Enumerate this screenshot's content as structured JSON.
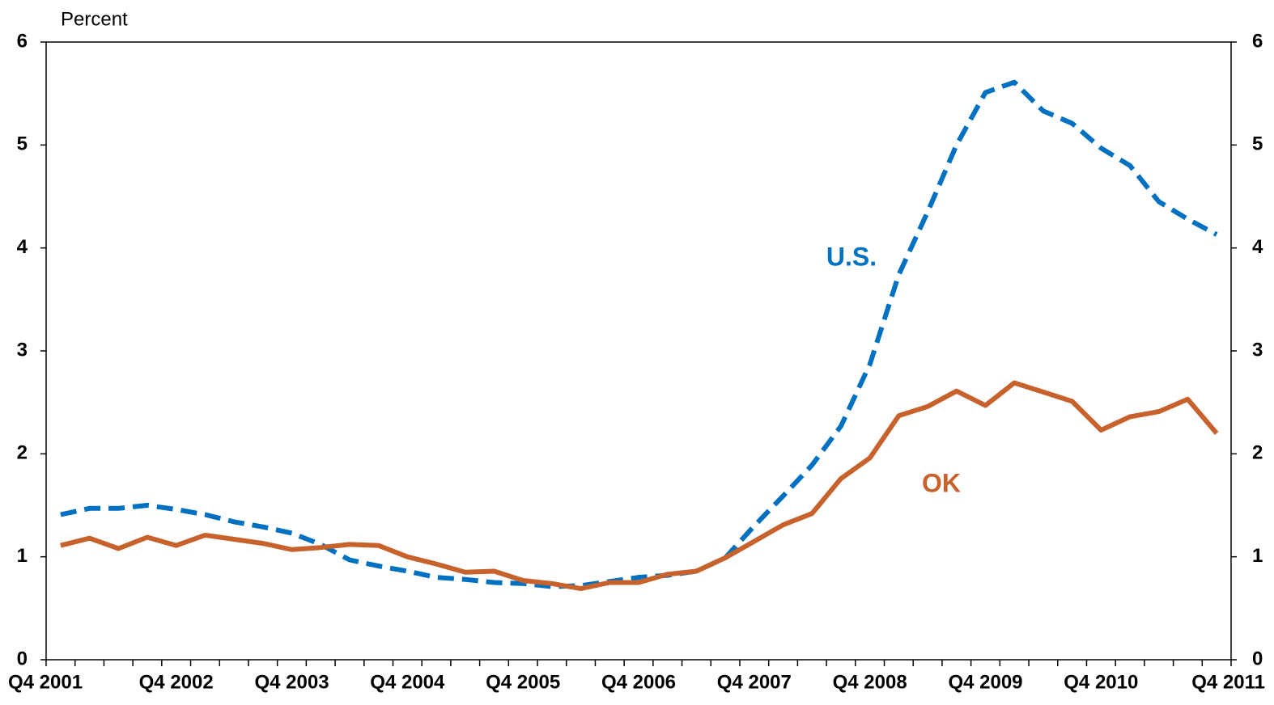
{
  "chart_data": {
    "type": "line",
    "y_label": "Percent",
    "categories": [
      "Q4 2001",
      null,
      null,
      null,
      "Q4 2002",
      null,
      null,
      null,
      "Q4 2003",
      null,
      null,
      null,
      "Q4 2004",
      null,
      null,
      null,
      "Q4 2005",
      null,
      null,
      null,
      "Q4 2006",
      null,
      null,
      null,
      "Q4 2007",
      null,
      null,
      null,
      "Q4 2008",
      null,
      null,
      null,
      "Q4 2009",
      null,
      null,
      null,
      "Q4 2010",
      null,
      null,
      null,
      "Q4 2011"
    ],
    "series": [
      {
        "name": "U.S.",
        "color": "#0070c0",
        "line_style": "dashed",
        "values": [
          1.41,
          1.47,
          1.47,
          1.5,
          1.46,
          1.41,
          1.34,
          1.29,
          1.23,
          1.12,
          0.97,
          0.91,
          0.86,
          0.8,
          0.78,
          0.75,
          0.74,
          0.71,
          0.72,
          0.76,
          0.8,
          0.82,
          0.86,
          0.99,
          1.3,
          1.59,
          1.89,
          2.27,
          2.87,
          3.74,
          4.35,
          5.0,
          5.51,
          5.61,
          5.33,
          5.21,
          4.97,
          4.8,
          4.45,
          4.28,
          4.13
        ]
      },
      {
        "name": "OK",
        "color": "#c8622d",
        "line_style": "solid",
        "values": [
          1.11,
          1.18,
          1.08,
          1.19,
          1.11,
          1.21,
          1.17,
          1.13,
          1.07,
          1.09,
          1.12,
          1.11,
          1.0,
          0.93,
          0.85,
          0.86,
          0.77,
          0.74,
          0.69,
          0.75,
          0.75,
          0.83,
          0.86,
          0.99,
          1.15,
          1.31,
          1.42,
          1.76,
          1.96,
          2.37,
          2.46,
          2.61,
          2.47,
          2.69,
          2.6,
          2.51,
          2.23,
          2.36,
          2.41,
          2.53,
          2.2
        ]
      }
    ],
    "ylim": [
      0,
      6
    ],
    "yticks": [
      0,
      1,
      2,
      3,
      4,
      5,
      6
    ],
    "y2lim": [
      0,
      6
    ],
    "y2ticks": [
      0,
      1,
      2,
      3,
      4,
      5,
      6
    ],
    "grid": false
  }
}
